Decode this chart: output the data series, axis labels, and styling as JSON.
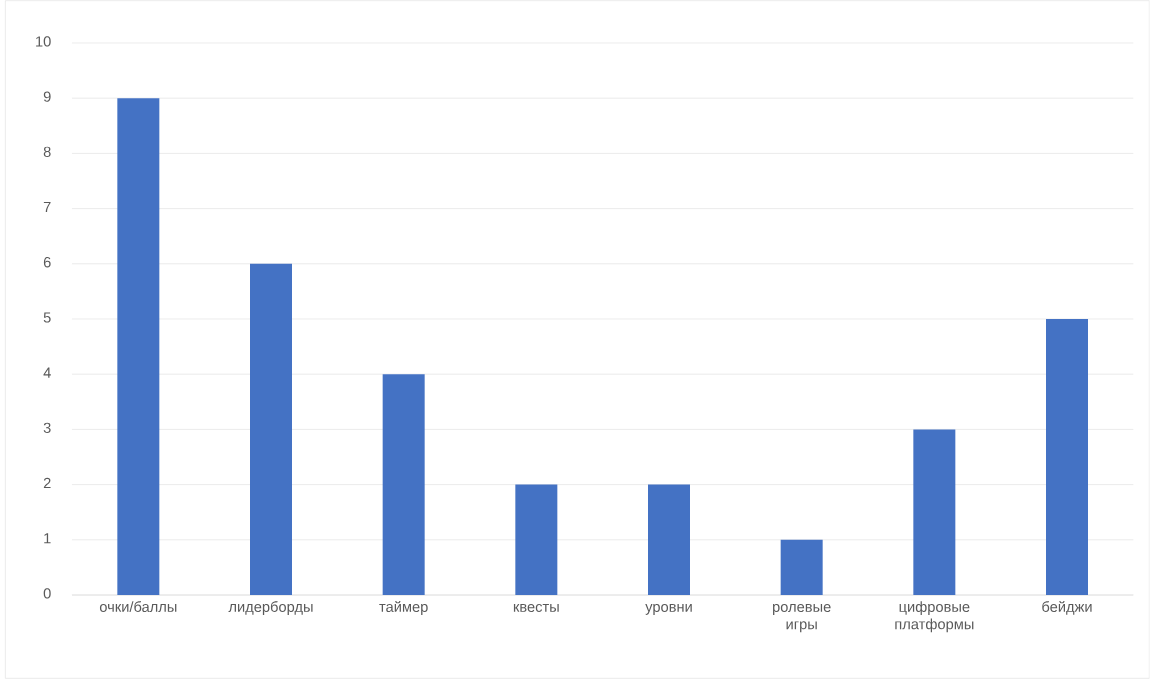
{
  "chart_data": {
    "type": "bar",
    "categories": [
      "очки/баллы",
      "лидерборды",
      "таймер",
      "квесты",
      "уровни",
      "ролевые игры",
      "цифровые платформы",
      "бейджи"
    ],
    "values": [
      9,
      6,
      4,
      2,
      2,
      1,
      3,
      5
    ],
    "color": "#4472c4",
    "ylim": [
      0,
      10
    ],
    "yticks": [
      0,
      1,
      2,
      3,
      4,
      5,
      6,
      7,
      8,
      9,
      10
    ],
    "grid": "y"
  }
}
